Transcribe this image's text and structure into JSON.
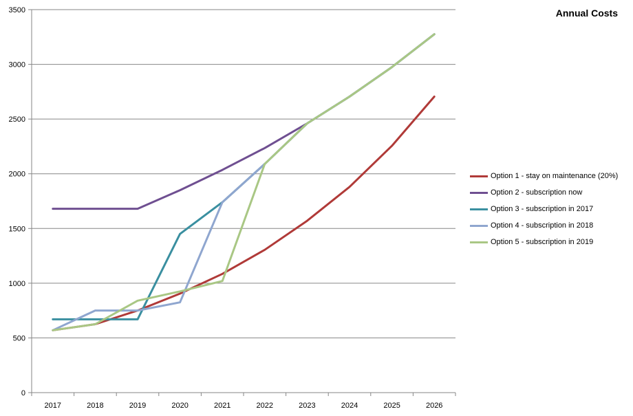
{
  "chart_data": {
    "type": "line",
    "title": "Annual Costs",
    "xlabel": "",
    "ylabel": "",
    "categories": [
      "2017",
      "2018",
      "2019",
      "2020",
      "2021",
      "2022",
      "2023",
      "2024",
      "2025",
      "2026"
    ],
    "ylim": [
      0,
      3500
    ],
    "yticks": [
      0,
      500,
      1000,
      1500,
      2000,
      2500,
      3000,
      3500
    ],
    "grid": "horizontal",
    "legend": "right",
    "series": [
      {
        "name": "Option 1 - stay on maintenance (20%)",
        "color": "#b03a38",
        "values": [
          570,
          625,
          750,
          905,
          1085,
          1305,
          1570,
          1880,
          2255,
          2705
        ]
      },
      {
        "name": "Option 2 - subscription now",
        "color": "#6f4f91",
        "values": [
          1680,
          1680,
          1680,
          1850,
          2035,
          2235,
          2460,
          2705,
          2975,
          3275
        ]
      },
      {
        "name": "Option 3 - subscription in 2017",
        "color": "#3a8fa0",
        "values": [
          670,
          670,
          670,
          1450,
          1740,
          2090,
          2460,
          2705,
          2975,
          3275
        ]
      },
      {
        "name": "Option 4 - subscription in 2018",
        "color": "#8fa6cf",
        "values": [
          570,
          750,
          750,
          825,
          1740,
          2090,
          2460,
          2705,
          2975,
          3275
        ]
      },
      {
        "name": "Option 5 - subscription in 2019",
        "color": "#a9c784",
        "values": [
          570,
          625,
          840,
          925,
          1020,
          2090,
          2460,
          2705,
          2975,
          3275
        ]
      }
    ]
  }
}
